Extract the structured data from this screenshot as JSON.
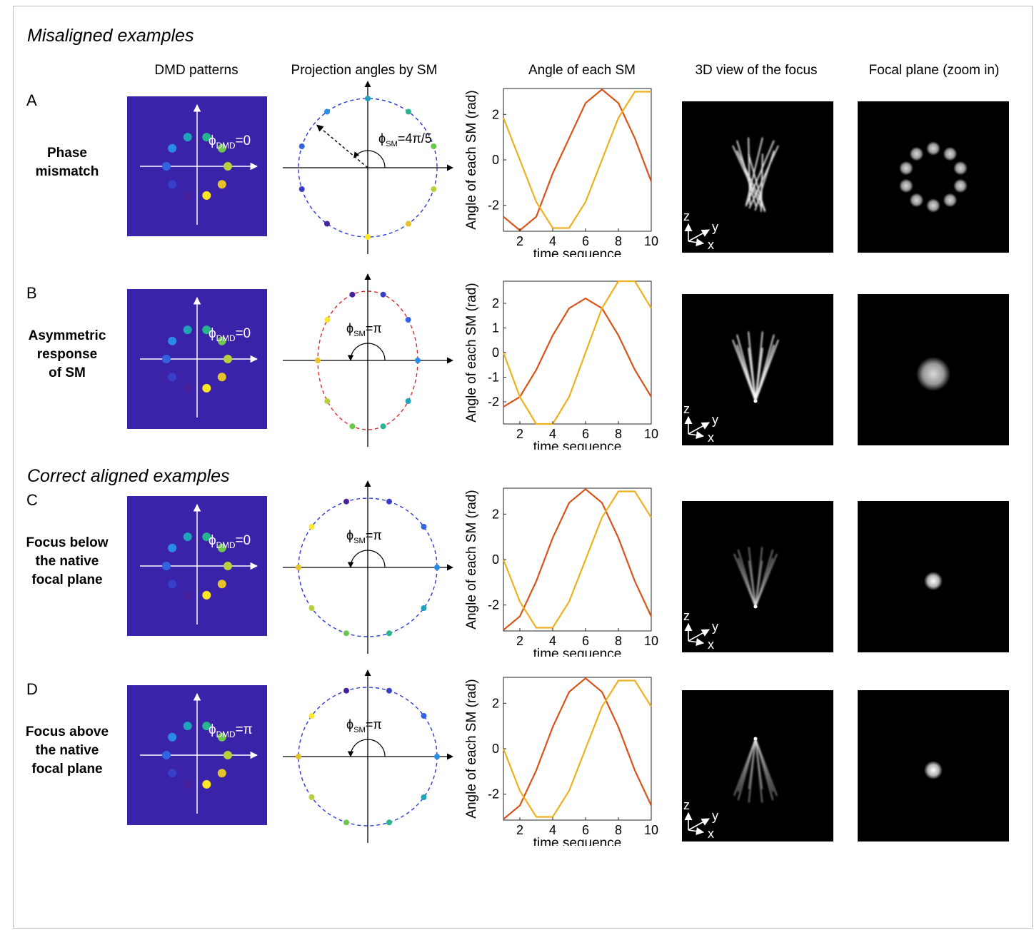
{
  "sections": {
    "misaligned": "Misaligned examples",
    "correct": "Correct aligned examples"
  },
  "columns": [
    "DMD patterns",
    "Projection angles by SM",
    "Angle of each SM",
    "3D view of the focus",
    "Focal plane (zoom in)"
  ],
  "axes_glyphs": {
    "z": "z",
    "y": "y",
    "x": "x"
  },
  "rows": [
    {
      "letter": "A",
      "label": [
        "Phase",
        "mismatch"
      ],
      "dmd_phi": "=0",
      "sm_phi": "=4π/5",
      "circle_color": "#2b3bd6",
      "focal": "ring"
    },
    {
      "letter": "B",
      "label": [
        "Asymmetric",
        "response",
        "of SM"
      ],
      "dmd_phi": "=0",
      "sm_phi": "=π",
      "circle_color": "#d62b2b",
      "focal": "blur"
    },
    {
      "letter": "C",
      "label": [
        "Focus below",
        "the native",
        "focal plane"
      ],
      "dmd_phi": "=0",
      "sm_phi": "=π",
      "circle_color": "#2b3bd6",
      "focal": "spot"
    },
    {
      "letter": "D",
      "label": [
        "Focus above",
        "the native",
        "focal plane"
      ],
      "dmd_phi": "=π",
      "sm_phi": "=π",
      "circle_color": "#2b3bd6",
      "focal": "spot"
    }
  ],
  "phi_symbol": "ϕ",
  "phi_dmd_sub": "DMD",
  "phi_sm_sub": "SM",
  "chart_data": [
    {
      "type": "line",
      "row": "A",
      "xlabel": "time sequence",
      "ylabel": "Angle of each SM (rad)",
      "xlim": [
        1,
        10
      ],
      "ylim": [
        -3.14,
        3.14
      ],
      "xticks": [
        "2",
        "4",
        "6",
        "8",
        "10"
      ],
      "yticks": [
        "2",
        "0",
        "-2"
      ],
      "x": [
        1,
        2,
        3,
        4,
        5,
        6,
        7,
        8,
        9,
        10
      ],
      "series": [
        {
          "color": "#d95319",
          "values": [
            -2.5,
            -3.1,
            -2.5,
            -0.6,
            0.95,
            2.5,
            3.1,
            2.5,
            0.95,
            -0.95
          ]
        },
        {
          "color": "#edb120",
          "values": [
            1.85,
            0,
            -1.85,
            -3.0,
            -3.0,
            -1.85,
            0,
            1.85,
            3.0,
            3.0
          ]
        }
      ]
    },
    {
      "type": "line",
      "row": "B",
      "xlabel": "time sequence",
      "ylabel": "Angle of each SM (rad)",
      "xlim": [
        1,
        10
      ],
      "ylim": [
        -2.9,
        2.9
      ],
      "xticks": [
        "2",
        "4",
        "6",
        "8",
        "10"
      ],
      "yticks": [
        "2",
        "1",
        "0",
        "-1",
        "-2"
      ],
      "x": [
        1,
        2,
        3,
        4,
        5,
        6,
        7,
        8,
        9,
        10
      ],
      "series": [
        {
          "color": "#d95319",
          "values": [
            -2.2,
            -1.8,
            -0.7,
            0.7,
            1.8,
            2.2,
            1.8,
            0.7,
            -0.7,
            -1.8
          ]
        },
        {
          "color": "#edb120",
          "values": [
            0,
            -1.8,
            -2.9,
            -2.9,
            -1.8,
            0,
            1.8,
            2.9,
            2.9,
            1.8
          ]
        }
      ]
    },
    {
      "type": "line",
      "row": "C",
      "xlabel": "time sequence",
      "ylabel": "Angle of each SM (rad)",
      "xlim": [
        1,
        10
      ],
      "ylim": [
        -3.14,
        3.14
      ],
      "xticks": [
        "2",
        "4",
        "6",
        "8",
        "10"
      ],
      "yticks": [
        "2",
        "0",
        "-2"
      ],
      "x": [
        1,
        2,
        3,
        4,
        5,
        6,
        7,
        8,
        9,
        10
      ],
      "series": [
        {
          "color": "#d95319",
          "values": [
            -3.1,
            -2.5,
            -0.95,
            0.95,
            2.5,
            3.1,
            2.5,
            0.95,
            -0.95,
            -2.5
          ]
        },
        {
          "color": "#edb120",
          "values": [
            0,
            -1.85,
            -3.0,
            -3.0,
            -1.85,
            0,
            1.85,
            3.0,
            3.0,
            1.85
          ]
        }
      ]
    },
    {
      "type": "line",
      "row": "D",
      "xlabel": "time sequence",
      "ylabel": "Angle of each SM (rad)",
      "xlim": [
        1,
        10
      ],
      "ylim": [
        -3.14,
        3.14
      ],
      "xticks": [
        "2",
        "4",
        "6",
        "8",
        "10"
      ],
      "yticks": [
        "2",
        "0",
        "-2"
      ],
      "x": [
        1,
        2,
        3,
        4,
        5,
        6,
        7,
        8,
        9,
        10
      ],
      "series": [
        {
          "color": "#d95319",
          "values": [
            -3.1,
            -2.5,
            -0.95,
            0.95,
            2.5,
            3.1,
            2.5,
            0.95,
            -0.95,
            -2.5
          ]
        },
        {
          "color": "#edb120",
          "values": [
            0,
            -1.85,
            -3.0,
            -3.0,
            -1.85,
            0,
            1.85,
            3.0,
            3.0,
            1.85
          ]
        }
      ]
    }
  ]
}
